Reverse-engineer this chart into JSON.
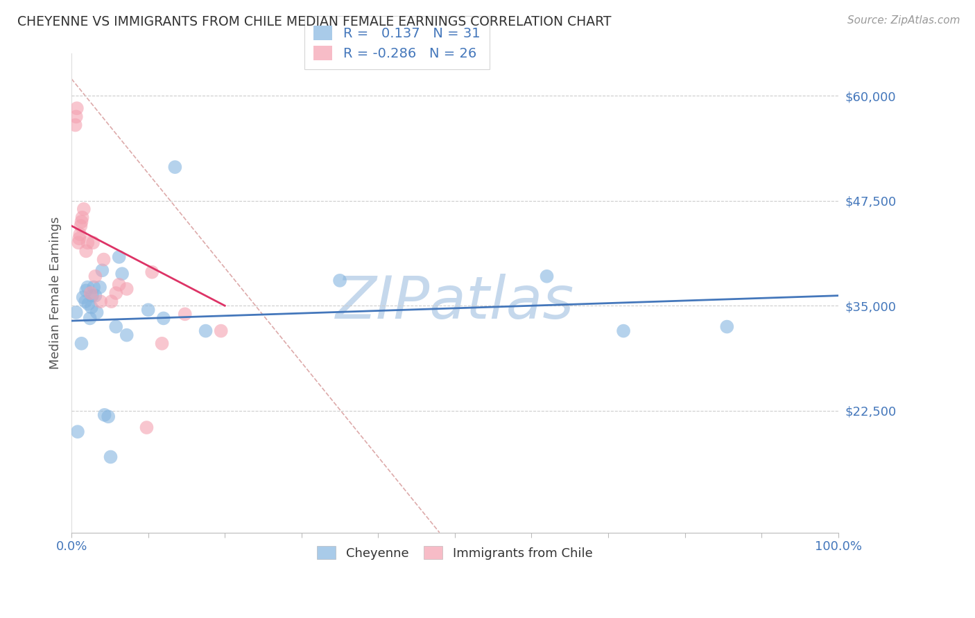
{
  "title": "CHEYENNE VS IMMIGRANTS FROM CHILE MEDIAN FEMALE EARNINGS CORRELATION CHART",
  "source": "Source: ZipAtlas.com",
  "ylabel": "Median Female Earnings",
  "xlim": [
    0.0,
    1.0
  ],
  "ylim": [
    8000,
    65000
  ],
  "yticks": [
    22500,
    35000,
    47500,
    60000
  ],
  "ytick_labels": [
    "$22,500",
    "$35,000",
    "$47,500",
    "$60,000"
  ],
  "xticks": [
    0.0,
    0.1,
    0.2,
    0.3,
    0.4,
    0.5,
    0.6,
    0.7,
    0.8,
    0.9,
    1.0
  ],
  "xtick_labels": [
    "0.0%",
    "",
    "",
    "",
    "",
    "",
    "",
    "",
    "",
    "",
    "100.0%"
  ],
  "blue_color": "#85B5E0",
  "pink_color": "#F4A0B0",
  "blue_line_color": "#4477BB",
  "pink_line_color": "#DD3366",
  "axis_color": "#4477BB",
  "grid_color": "#CCCCCC",
  "diag_line_color": "#DDAAAA",
  "background": "#FFFFFF",
  "watermark": "ZIPatlas",
  "watermark_color": "#C5D8EC",
  "legend_R_blue": "0.137",
  "legend_N_blue": "31",
  "legend_R_pink": "-0.286",
  "legend_N_pink": "26",
  "cheyenne_x": [
    0.006,
    0.008,
    0.013,
    0.015,
    0.018,
    0.019,
    0.021,
    0.022,
    0.024,
    0.026,
    0.027,
    0.029,
    0.031,
    0.033,
    0.037,
    0.04,
    0.043,
    0.048,
    0.051,
    0.058,
    0.062,
    0.066,
    0.072,
    0.1,
    0.12,
    0.135,
    0.175,
    0.35,
    0.62,
    0.72,
    0.855
  ],
  "cheyenne_y": [
    34200,
    20000,
    30500,
    36000,
    35500,
    36800,
    37200,
    35200,
    33500,
    34800,
    36200,
    37200,
    36200,
    34200,
    37200,
    39200,
    22000,
    21800,
    17000,
    32500,
    40800,
    38800,
    31500,
    34500,
    33500,
    51500,
    32000,
    38000,
    38500,
    32000,
    32500
  ],
  "chile_x": [
    0.005,
    0.006,
    0.007,
    0.009,
    0.01,
    0.011,
    0.012,
    0.013,
    0.014,
    0.016,
    0.019,
    0.021,
    0.025,
    0.028,
    0.031,
    0.038,
    0.042,
    0.052,
    0.058,
    0.062,
    0.072,
    0.098,
    0.105,
    0.118,
    0.148,
    0.195
  ],
  "chile_y": [
    56500,
    57500,
    58500,
    42500,
    43000,
    43500,
    44500,
    45000,
    45500,
    46500,
    41500,
    42500,
    36500,
    42500,
    38500,
    35500,
    40500,
    35500,
    36500,
    37500,
    37000,
    20500,
    39000,
    30500,
    34000,
    32000
  ],
  "blue_trend_x0": 0.0,
  "blue_trend_x1": 1.0,
  "blue_trend_y0": 33200,
  "blue_trend_y1": 36200,
  "pink_trend_x0": 0.0,
  "pink_trend_x1": 0.2,
  "pink_trend_y0": 44500,
  "pink_trend_y1": 35000,
  "diag_line_x0": 0.0,
  "diag_line_x1": 0.48,
  "diag_line_y0": 62000,
  "diag_line_y1": 8000
}
